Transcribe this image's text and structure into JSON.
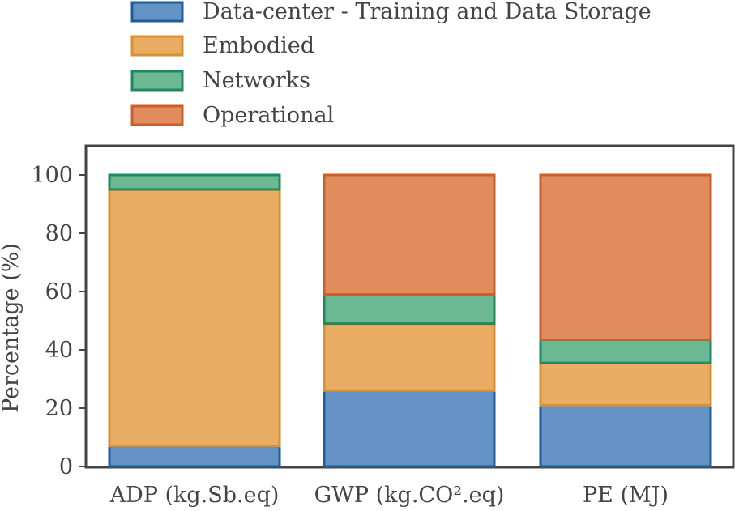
{
  "chart_data": {
    "type": "bar",
    "stacked": true,
    "categories": [
      "ADP (kg.Sb.eq)",
      "GWP (kg.CO².eq)",
      "PE (MJ)"
    ],
    "series": [
      {
        "name": "Data-center - Training and Data Storage",
        "values": [
          7,
          26,
          21
        ],
        "color": "#6592c4",
        "edge": "#1f5c9a"
      },
      {
        "name": "Embodied",
        "values": [
          88,
          23,
          14.5
        ],
        "color": "#e8ac62",
        "edge": "#d9922f"
      },
      {
        "name": "Networks",
        "values": [
          5,
          10,
          8
        ],
        "color": "#6cb892",
        "edge": "#1f8a62"
      },
      {
        "name": "Operational",
        "values": [
          0,
          41,
          56.5
        ],
        "color": "#e08c5c",
        "edge": "#c95f2b"
      }
    ],
    "title": "",
    "xlabel": "",
    "ylabel": "Percentage (%)",
    "ylim": [
      0,
      110
    ],
    "yticks": [
      0,
      20,
      40,
      60,
      80,
      100
    ],
    "grid": false,
    "legend_position": "top-left, outside above plot"
  }
}
